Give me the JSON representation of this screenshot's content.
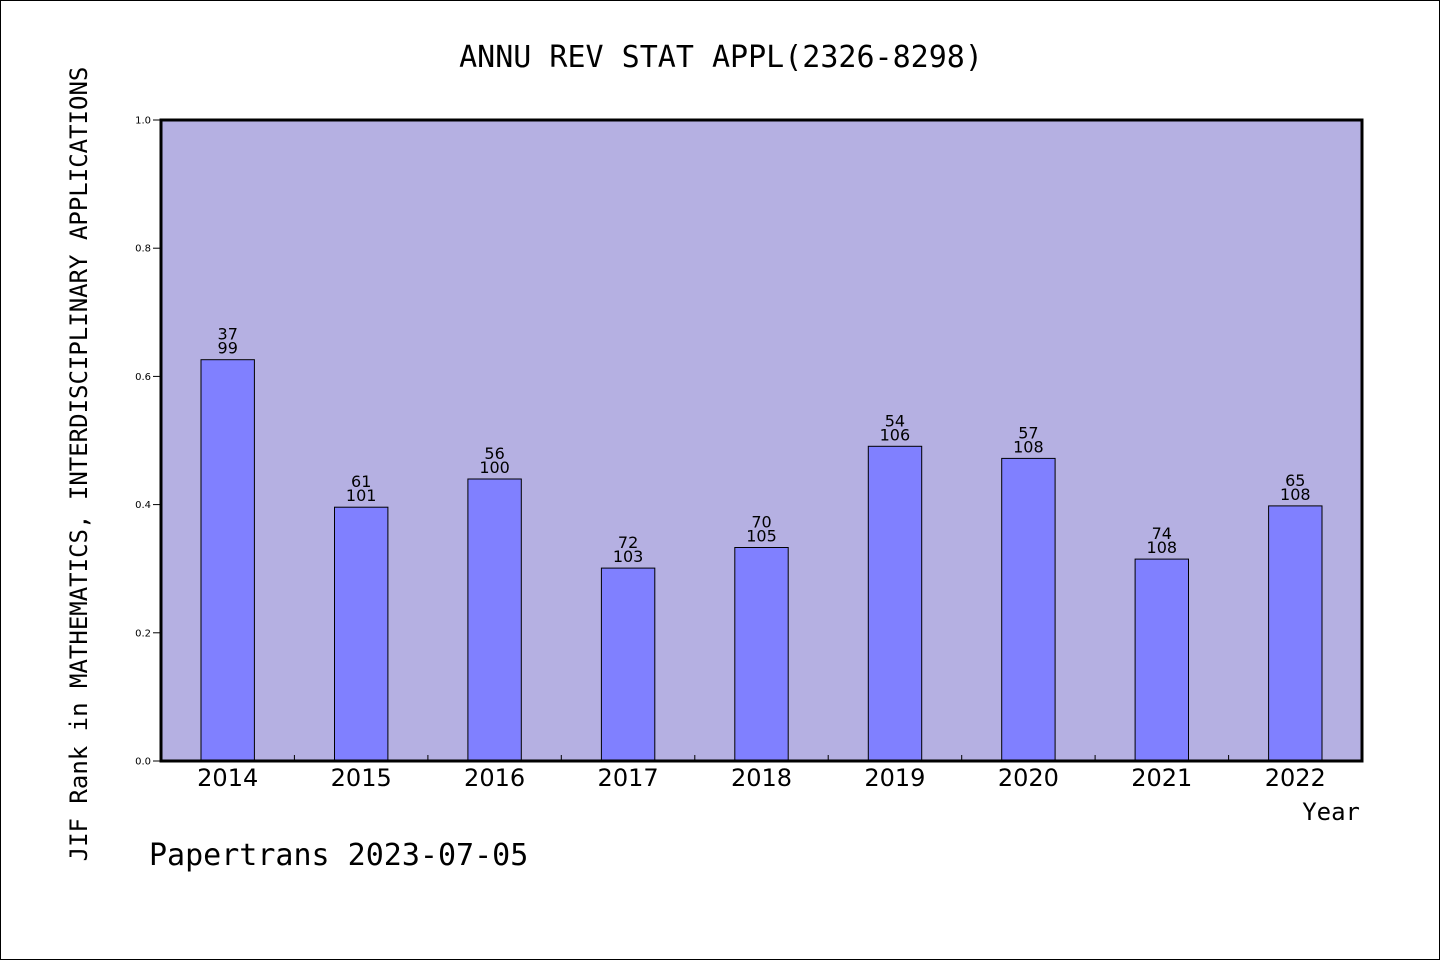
{
  "chart_data": {
    "type": "bar",
    "title": "ANNU REV STAT APPL(2326-8298)",
    "ylabel": "JIF Rank in MATHEMATICS,  INTERDISCIPLINARY APPLICATIONS",
    "xlabel": "Year",
    "categories": [
      "2014",
      "2015",
      "2016",
      "2017",
      "2018",
      "2019",
      "2020",
      "2021",
      "2022"
    ],
    "values": [
      0.626,
      0.396,
      0.44,
      0.301,
      0.333,
      0.491,
      0.472,
      0.315,
      0.398
    ],
    "bar_labels": [
      {
        "rank": "37",
        "total": "99"
      },
      {
        "rank": "61",
        "total": "101"
      },
      {
        "rank": "56",
        "total": "100"
      },
      {
        "rank": "72",
        "total": "103"
      },
      {
        "rank": "70",
        "total": "105"
      },
      {
        "rank": "54",
        "total": "106"
      },
      {
        "rank": "57",
        "total": "108"
      },
      {
        "rank": "74",
        "total": "108"
      },
      {
        "rank": "65",
        "total": "108"
      }
    ],
    "ylim": [
      0,
      1.0
    ],
    "yticks": [
      "0.0",
      "0.2",
      "0.4",
      "0.6",
      "0.8",
      "1.0"
    ],
    "grid": false,
    "colors": {
      "plot_background": "#b5b0e2",
      "bar_fill": "#8080ff",
      "bar_stroke": "#000000"
    }
  },
  "footer": "Papertrans 2023-07-05"
}
